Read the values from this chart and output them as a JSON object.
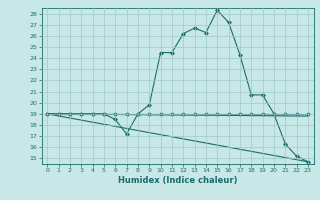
{
  "title": "",
  "xlabel": "Humidex (Indice chaleur)",
  "ylabel": "",
  "background_color": "#c8e8e8",
  "line_color": "#1a6b6b",
  "grid_color": "#a0c8c8",
  "xlim": [
    -0.5,
    23.5
  ],
  "ylim": [
    14.5,
    28.5
  ],
  "yticks": [
    15,
    16,
    17,
    18,
    19,
    20,
    21,
    22,
    23,
    24,
    25,
    26,
    27,
    28
  ],
  "xticks": [
    0,
    1,
    2,
    3,
    4,
    5,
    6,
    7,
    8,
    9,
    10,
    11,
    12,
    13,
    14,
    15,
    16,
    17,
    18,
    19,
    20,
    21,
    22,
    23
  ],
  "lines": [
    {
      "x": [
        0,
        1,
        2,
        3,
        4,
        5,
        6,
        7,
        8,
        9,
        10,
        11,
        12,
        13,
        14,
        15,
        16,
        17,
        18,
        19,
        20,
        21,
        22,
        23
      ],
      "y": [
        19,
        19,
        19,
        19,
        19,
        19,
        18.5,
        17.2,
        19,
        19.8,
        24.5,
        24.5,
        26.2,
        26.7,
        26.3,
        28.3,
        27.2,
        24.3,
        20.7,
        20.7,
        19.0,
        16.3,
        15.2,
        14.7
      ],
      "marker": "D",
      "markersize": 2.0,
      "linewidth": 0.8
    },
    {
      "x": [
        0,
        1,
        2,
        3,
        4,
        5,
        6,
        7,
        8,
        9,
        10,
        11,
        12,
        13,
        14,
        15,
        16,
        17,
        18,
        19,
        20,
        21,
        22,
        23
      ],
      "y": [
        19,
        19,
        19,
        19,
        19,
        19,
        19,
        19,
        19,
        19,
        19,
        19,
        19,
        19,
        19,
        19,
        19,
        19,
        19,
        19,
        19,
        19,
        19,
        19
      ],
      "marker": "D",
      "markersize": 2.0,
      "linewidth": 0.8
    },
    {
      "x": [
        0,
        23
      ],
      "y": [
        19,
        18.8
      ],
      "marker": null,
      "markersize": 0,
      "linewidth": 0.8
    },
    {
      "x": [
        0,
        23
      ],
      "y": [
        19,
        14.7
      ],
      "marker": null,
      "markersize": 0,
      "linewidth": 0.8
    }
  ]
}
